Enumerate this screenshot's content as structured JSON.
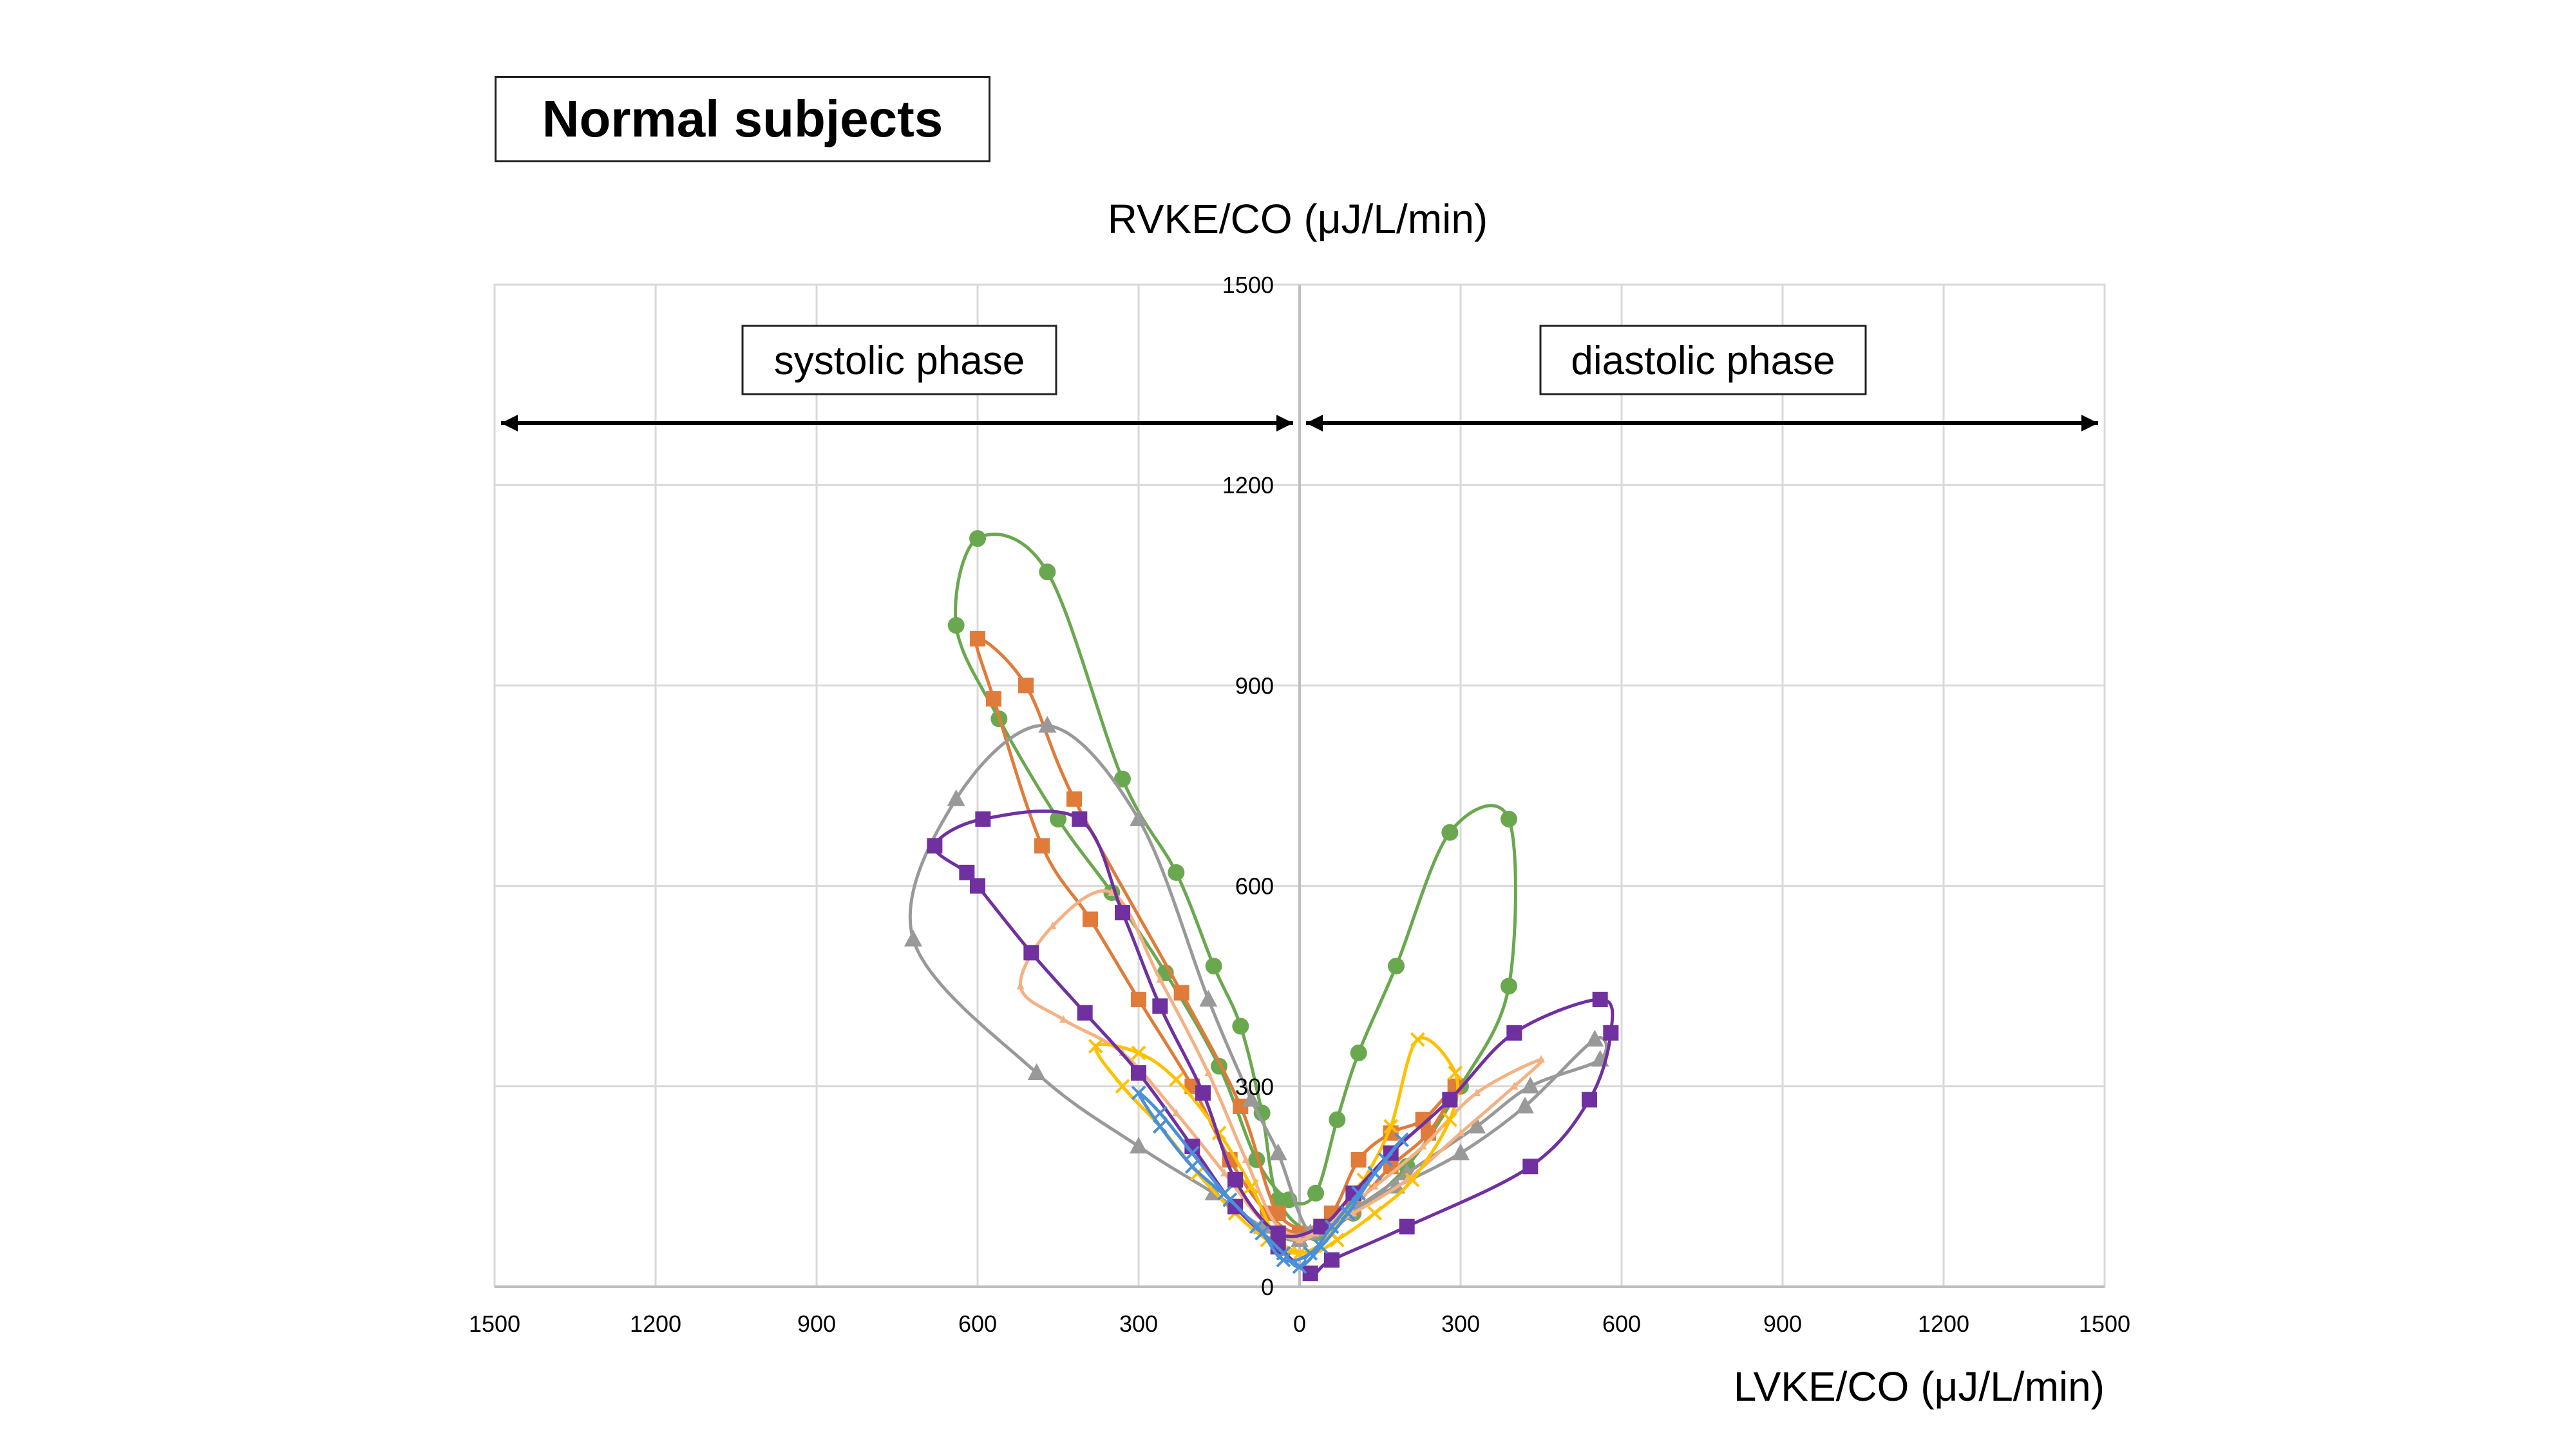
{
  "title": "Normal subjects",
  "chart_data": {
    "type": "scatter",
    "title": "Normal subjects",
    "ylabel": "RVKE/CO (μJ/L/min)",
    "xlabel": "LVKE/CO (μJ/L/min)",
    "x_tick_labels": [
      "1500",
      "1200",
      "900",
      "600",
      "300",
      "0",
      "300",
      "600",
      "900",
      "1200",
      "1500"
    ],
    "y_tick_labels": [
      "0",
      "300",
      "600",
      "900",
      "1200",
      "1500"
    ],
    "xlim": [
      -1500,
      1500
    ],
    "ylim": [
      0,
      1500
    ],
    "x_axis_note": "negative x = systolic phase (labels shown as magnitudes), positive x = diastolic phase",
    "grid": true,
    "legend": "none",
    "phase_labels": {
      "systolic": "systolic phase",
      "diastolic": "diastolic phase"
    },
    "series": [
      {
        "color": "#6aa84f",
        "marker": "circle",
        "points": [
          [
            -40,
            130
          ],
          [
            -70,
            260
          ],
          [
            -110,
            390
          ],
          [
            -160,
            480
          ],
          [
            -230,
            620
          ],
          [
            -330,
            760
          ],
          [
            -470,
            1070
          ],
          [
            -600,
            1120
          ],
          [
            -640,
            990
          ],
          [
            -560,
            850
          ],
          [
            -450,
            700
          ],
          [
            -350,
            590
          ],
          [
            -250,
            470
          ],
          [
            -150,
            330
          ],
          [
            -80,
            190
          ],
          [
            -20,
            130
          ],
          [
            30,
            140
          ],
          [
            70,
            250
          ],
          [
            110,
            350
          ],
          [
            180,
            480
          ],
          [
            280,
            680
          ],
          [
            390,
            700
          ],
          [
            390,
            450
          ],
          [
            300,
            300
          ],
          [
            200,
            180
          ],
          [
            100,
            110
          ],
          [
            30,
            80
          ]
        ]
      },
      {
        "color": "#e07b39",
        "marker": "square",
        "points": [
          [
            -40,
            110
          ],
          [
            -110,
            270
          ],
          [
            -220,
            440
          ],
          [
            -420,
            730
          ],
          [
            -510,
            900
          ],
          [
            -600,
            970
          ],
          [
            -570,
            880
          ],
          [
            -480,
            660
          ],
          [
            -390,
            550
          ],
          [
            -300,
            430
          ],
          [
            -200,
            300
          ],
          [
            -130,
            190
          ],
          [
            -60,
            110
          ],
          [
            0,
            80
          ],
          [
            60,
            110
          ],
          [
            110,
            190
          ],
          [
            170,
            230
          ],
          [
            230,
            250
          ],
          [
            290,
            300
          ],
          [
            240,
            230
          ],
          [
            170,
            180
          ],
          [
            100,
            120
          ],
          [
            40,
            90
          ]
        ]
      },
      {
        "color": "#999999",
        "marker": "triangle",
        "points": [
          [
            -40,
            200
          ],
          [
            -90,
            280
          ],
          [
            -170,
            430
          ],
          [
            -300,
            700
          ],
          [
            -470,
            840
          ],
          [
            -640,
            730
          ],
          [
            -720,
            520
          ],
          [
            -490,
            320
          ],
          [
            -300,
            210
          ],
          [
            -160,
            140
          ],
          [
            -70,
            90
          ],
          [
            0,
            70
          ],
          [
            80,
            110
          ],
          [
            180,
            150
          ],
          [
            300,
            200
          ],
          [
            420,
            270
          ],
          [
            550,
            370
          ],
          [
            560,
            340
          ],
          [
            430,
            300
          ],
          [
            330,
            240
          ],
          [
            200,
            170
          ],
          [
            90,
            110
          ],
          [
            20,
            80
          ]
        ]
      },
      {
        "color": "#f4b183",
        "marker": "triangle-small",
        "points": [
          [
            -40,
            90
          ],
          [
            -100,
            190
          ],
          [
            -170,
            320
          ],
          [
            -260,
            460
          ],
          [
            -350,
            590
          ],
          [
            -460,
            540
          ],
          [
            -520,
            450
          ],
          [
            -440,
            400
          ],
          [
            -330,
            350
          ],
          [
            -230,
            260
          ],
          [
            -140,
            170
          ],
          [
            -70,
            100
          ],
          [
            0,
            70
          ],
          [
            60,
            100
          ],
          [
            140,
            150
          ],
          [
            230,
            210
          ],
          [
            330,
            290
          ],
          [
            450,
            340
          ],
          [
            400,
            300
          ],
          [
            300,
            230
          ],
          [
            200,
            160
          ],
          [
            100,
            110
          ],
          [
            30,
            80
          ]
        ]
      },
      {
        "color": "#ffc000",
        "marker": "x",
        "points": [
          [
            -40,
            70
          ],
          [
            -90,
            150
          ],
          [
            -150,
            230
          ],
          [
            -230,
            310
          ],
          [
            -300,
            350
          ],
          [
            -380,
            360
          ],
          [
            -330,
            300
          ],
          [
            -260,
            240
          ],
          [
            -190,
            170
          ],
          [
            -120,
            110
          ],
          [
            -60,
            70
          ],
          [
            0,
            50
          ],
          [
            60,
            80
          ],
          [
            120,
            160
          ],
          [
            170,
            240
          ],
          [
            220,
            370
          ],
          [
            290,
            320
          ],
          [
            280,
            250
          ],
          [
            210,
            160
          ],
          [
            140,
            110
          ],
          [
            70,
            70
          ],
          [
            20,
            50
          ]
        ]
      },
      {
        "color": "#7030a0",
        "marker": "square",
        "points": [
          [
            -40,
            80
          ],
          [
            -120,
            160
          ],
          [
            -180,
            290
          ],
          [
            -260,
            420
          ],
          [
            -330,
            560
          ],
          [
            -410,
            700
          ],
          [
            -590,
            700
          ],
          [
            -680,
            660
          ],
          [
            -620,
            620
          ],
          [
            -600,
            600
          ],
          [
            -500,
            500
          ],
          [
            -400,
            410
          ],
          [
            -300,
            320
          ],
          [
            -200,
            210
          ],
          [
            -120,
            120
          ],
          [
            -40,
            60
          ],
          [
            20,
            20
          ],
          [
            60,
            40
          ],
          [
            200,
            90
          ],
          [
            430,
            180
          ],
          [
            540,
            280
          ],
          [
            580,
            380
          ],
          [
            560,
            430
          ],
          [
            400,
            380
          ],
          [
            280,
            280
          ],
          [
            170,
            200
          ],
          [
            100,
            140
          ],
          [
            40,
            90
          ]
        ]
      },
      {
        "color": "#4a90d9",
        "marker": "x",
        "points": [
          [
            -30,
            40
          ],
          [
            -70,
            80
          ],
          [
            -130,
            130
          ],
          [
            -200,
            180
          ],
          [
            -260,
            240
          ],
          [
            -300,
            290
          ],
          [
            -260,
            260
          ],
          [
            -200,
            200
          ],
          [
            -140,
            140
          ],
          [
            -80,
            90
          ],
          [
            -30,
            50
          ],
          [
            0,
            30
          ],
          [
            40,
            60
          ],
          [
            90,
            110
          ],
          [
            140,
            170
          ],
          [
            190,
            220
          ],
          [
            160,
            190
          ],
          [
            110,
            140
          ],
          [
            60,
            90
          ],
          [
            20,
            50
          ]
        ]
      }
    ]
  }
}
